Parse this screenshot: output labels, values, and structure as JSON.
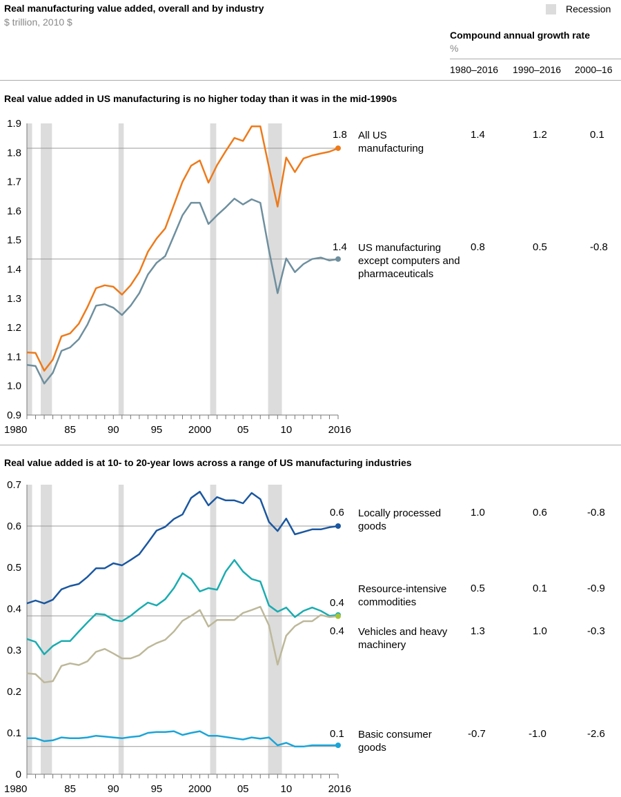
{
  "header": {
    "title": "Real manufacturing value added, overall and by industry",
    "subtitle": "$ trillion, 2010 $",
    "legend_recession": "Recession",
    "cagr_title": "Compound annual growth rate",
    "cagr_unit": "%",
    "periods": [
      "1980–2016",
      "1990–2016",
      "2000–16"
    ]
  },
  "colors": {
    "recession": "#dcdcdc",
    "all_us": "#ee7a1a",
    "except": "#6e8f9e",
    "local": "#1a57a0",
    "resource": "#1aacb0",
    "vehicles": "#bdb89a",
    "vehicles_dot": "#a6c43a",
    "basic": "#1aa5d8"
  },
  "recessions": [
    [
      1980.0,
      1980.6
    ],
    [
      1981.6,
      1982.9
    ],
    [
      1990.6,
      1991.2
    ],
    [
      2001.2,
      2001.9
    ],
    [
      2007.9,
      2009.5
    ]
  ],
  "sections": [
    {
      "title": "Real value added in US manufacturing is no higher today than it was in the mid-1990s",
      "rows": [
        {
          "label": "All US manufacturing",
          "end_label": "1.8",
          "cagr": [
            "1.4",
            "1.2",
            "0.1"
          ]
        },
        {
          "label": "US manufacturing except computers and pharmaceuticals",
          "end_label": "1.4",
          "cagr": [
            "0.8",
            "0.5",
            "-0.8"
          ]
        }
      ]
    },
    {
      "title": "Real value added is at 10- to 20-year lows across a range of US manufacturing industries",
      "rows": [
        {
          "label": "Locally processed goods",
          "end_label": "0.6",
          "cagr": [
            "1.0",
            "0.6",
            "-0.8"
          ]
        },
        {
          "label": "Resource-intensive commodities",
          "end_label": "0.4",
          "cagr": [
            "0.5",
            "0.1",
            "-0.9"
          ]
        },
        {
          "label": "Vehicles and heavy machinery",
          "end_label": "0.4",
          "cagr": [
            "1.3",
            "1.0",
            "-0.3"
          ]
        },
        {
          "label": "Basic consumer goods",
          "end_label": "0.1",
          "cagr": [
            "-0.7",
            "-1.0",
            "-2.6"
          ]
        }
      ]
    }
  ],
  "chart_data": [
    {
      "type": "line",
      "title": "Real value added in US manufacturing is no higher today than it was in the mid-1990s",
      "ylabel": "$ trillion, 2010 $",
      "xlim": [
        1980,
        2016
      ],
      "ylim": [
        0.9,
        1.9
      ],
      "yticks": [
        "0.9",
        "1.0",
        "1.1",
        "1.2",
        "1.3",
        "1.4",
        "1.5",
        "1.6",
        "1.7",
        "1.8",
        "1.9"
      ],
      "xticks": [
        {
          "year": 1980,
          "label": "1980"
        },
        {
          "year": 1985,
          "label": "85"
        },
        {
          "year": 1990,
          "label": "90"
        },
        {
          "year": 1995,
          "label": "95"
        },
        {
          "year": 2000,
          "label": "2000"
        },
        {
          "year": 2005,
          "label": "05"
        },
        {
          "year": 2010,
          "label": "10"
        },
        {
          "year": 2016,
          "label": "2016"
        }
      ],
      "reference_lines": [
        1.815,
        1.435
      ],
      "x_start": 1980,
      "series": [
        {
          "name": "All US manufacturing",
          "color_key": "all_us",
          "values": [
            1.115,
            1.113,
            1.052,
            1.09,
            1.17,
            1.18,
            1.213,
            1.27,
            1.335,
            1.345,
            1.34,
            1.313,
            1.345,
            1.39,
            1.46,
            1.505,
            1.54,
            1.62,
            1.7,
            1.755,
            1.773,
            1.697,
            1.757,
            1.805,
            1.85,
            1.84,
            1.89,
            1.89,
            1.75,
            1.615,
            1.783,
            1.733,
            1.78,
            1.79,
            1.797,
            1.803,
            1.815
          ]
        },
        {
          "name": "US manufacturing except computers and pharmaceuticals",
          "color_key": "except",
          "values": [
            1.072,
            1.068,
            1.008,
            1.045,
            1.12,
            1.132,
            1.16,
            1.21,
            1.275,
            1.28,
            1.268,
            1.243,
            1.275,
            1.318,
            1.382,
            1.422,
            1.445,
            1.515,
            1.585,
            1.628,
            1.628,
            1.555,
            1.585,
            1.612,
            1.642,
            1.622,
            1.64,
            1.628,
            1.465,
            1.318,
            1.437,
            1.39,
            1.418,
            1.435,
            1.44,
            1.43,
            1.435
          ]
        }
      ]
    },
    {
      "type": "line",
      "title": "Real value added is at 10- to 20-year lows across a range of US manufacturing industries",
      "ylabel": "$ trillion, 2010 $",
      "xlim": [
        1980,
        2016
      ],
      "ylim": [
        0,
        0.7
      ],
      "yticks": [
        "0",
        "0.1",
        "0.2",
        "0.3",
        "0.4",
        "0.5",
        "0.6",
        "0.7"
      ],
      "xticks": [
        {
          "year": 1980,
          "label": "1980"
        },
        {
          "year": 1985,
          "label": "85"
        },
        {
          "year": 1990,
          "label": "90"
        },
        {
          "year": 1995,
          "label": "95"
        },
        {
          "year": 2000,
          "label": "2000"
        },
        {
          "year": 2005,
          "label": "05"
        },
        {
          "year": 2010,
          "label": "10"
        },
        {
          "year": 2016,
          "label": "2016"
        }
      ],
      "reference_lines": [
        0.6,
        0.383,
        0.067
      ],
      "x_start": 1980,
      "series": [
        {
          "name": "Locally processed goods",
          "color_key": "local",
          "values": [
            0.413,
            0.42,
            0.413,
            0.422,
            0.447,
            0.455,
            0.46,
            0.477,
            0.498,
            0.498,
            0.51,
            0.505,
            0.518,
            0.532,
            0.56,
            0.589,
            0.598,
            0.617,
            0.628,
            0.668,
            0.683,
            0.65,
            0.67,
            0.662,
            0.662,
            0.655,
            0.68,
            0.665,
            0.61,
            0.588,
            0.618,
            0.58,
            0.586,
            0.592,
            0.592,
            0.597,
            0.6
          ]
        },
        {
          "name": "Resource-intensive commodities",
          "color_key": "resource",
          "values": [
            0.327,
            0.32,
            0.29,
            0.31,
            0.322,
            0.322,
            0.345,
            0.367,
            0.388,
            0.386,
            0.373,
            0.37,
            0.383,
            0.4,
            0.415,
            0.408,
            0.423,
            0.45,
            0.486,
            0.472,
            0.442,
            0.45,
            0.446,
            0.49,
            0.518,
            0.49,
            0.472,
            0.466,
            0.408,
            0.393,
            0.403,
            0.38,
            0.395,
            0.403,
            0.395,
            0.383,
            0.385
          ]
        },
        {
          "name": "Vehicles and heavy machinery",
          "color_key": "vehicles",
          "dot_key": "vehicles_dot",
          "values": [
            0.244,
            0.242,
            0.222,
            0.225,
            0.262,
            0.268,
            0.264,
            0.273,
            0.296,
            0.303,
            0.292,
            0.28,
            0.28,
            0.288,
            0.306,
            0.317,
            0.325,
            0.345,
            0.371,
            0.383,
            0.397,
            0.357,
            0.373,
            0.373,
            0.373,
            0.39,
            0.397,
            0.405,
            0.36,
            0.265,
            0.335,
            0.358,
            0.37,
            0.37,
            0.385,
            0.38,
            0.382
          ]
        },
        {
          "name": "Basic consumer goods",
          "color_key": "basic",
          "values": [
            0.087,
            0.087,
            0.08,
            0.082,
            0.089,
            0.087,
            0.087,
            0.089,
            0.093,
            0.091,
            0.089,
            0.087,
            0.09,
            0.092,
            0.1,
            0.102,
            0.102,
            0.104,
            0.095,
            0.1,
            0.104,
            0.093,
            0.093,
            0.09,
            0.087,
            0.084,
            0.089,
            0.086,
            0.089,
            0.07,
            0.076,
            0.067,
            0.067,
            0.07,
            0.07,
            0.07,
            0.07
          ]
        }
      ]
    }
  ]
}
